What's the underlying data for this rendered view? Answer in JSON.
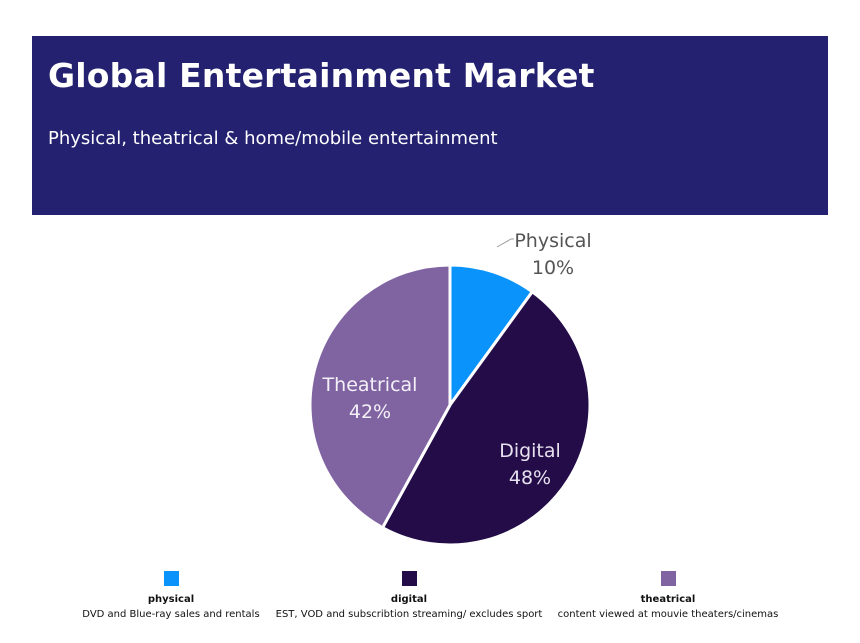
{
  "header": {
    "title": "Global Entertainment Market",
    "subtitle": "Physical, theatrical & home/mobile entertainment"
  },
  "colors": {
    "header_bg": "#232170",
    "physical": "#0a93fb",
    "digital": "#230c48",
    "theatrical": "#8064a2"
  },
  "chart_data": {
    "type": "pie",
    "slices": [
      {
        "label": "Physical",
        "value": 10,
        "value_label": "10%",
        "color": "#0a93fb"
      },
      {
        "label": "Digital",
        "value": 48,
        "value_label": "48%",
        "color": "#230c48"
      },
      {
        "label": "Theatrical",
        "value": 42,
        "value_label": "42%",
        "color": "#8064a2"
      }
    ],
    "legend": [
      {
        "name": "physical",
        "description": "DVD and Blue-ray sales and rentals",
        "color": "#0a93fb"
      },
      {
        "name": "digital",
        "description": "EST, VOD and subscribtion streaming/ excludes sport",
        "color": "#230c48"
      },
      {
        "name": "theatrical",
        "description": "content viewed at mouvie theaters/cinemas",
        "color": "#8064a2"
      }
    ]
  }
}
